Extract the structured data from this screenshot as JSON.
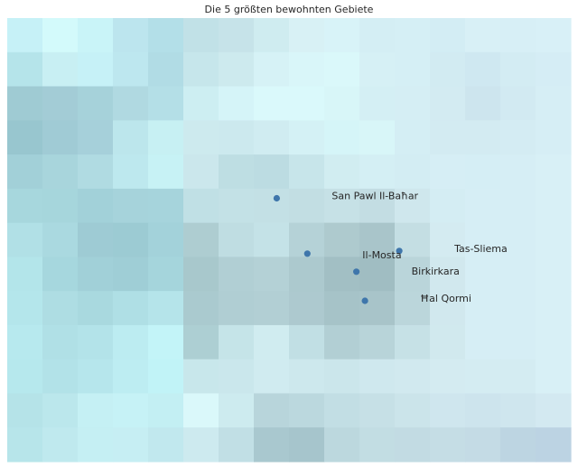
{
  "map": {
    "title": "Die 5 größten bewohnten Gebiete",
    "marker_color": "#3f76ab",
    "tile_colors": [
      [
        "#c6f1f7",
        "#d3fafb",
        "#c9f4f8",
        "#bce5ee",
        "#b3dfe8",
        "#c1e1e7",
        "#c6e3e9",
        "#cfecf0",
        "#d8f1f5",
        "#d8f3f8",
        "#d4eef4",
        "#d5eff5",
        "#d3edf4",
        "#d8f0f6",
        "#d7eff6",
        "#d8f0f7"
      ],
      [
        "#b5e4ea",
        "#c8eff3",
        "#c6f1f7",
        "#bde7ef",
        "#b1dce5",
        "#c6e6eb",
        "#cdeaee",
        "#d6f2f6",
        "#d9f6f9",
        "#daf8fa",
        "#d6f0f5",
        "#d5eff5",
        "#d2ebf2",
        "#cfe8f1",
        "#d3ecf3",
        "#d5edf5"
      ],
      [
        "#9fcbd3",
        "#a3ccd6",
        "#a6d2da",
        "#b0d9e1",
        "#b4dfe7",
        "#cdeef2",
        "#d5f4f8",
        "#daf9fb",
        "#daf9fb",
        "#d8f6f8",
        "#d4eff4",
        "#d5eef4",
        "#d3ebf2",
        "#cde5ee",
        "#d2eaf2",
        "#d6eef5"
      ],
      [
        "#98c6cf",
        "#a0cbd5",
        "#a6d0da",
        "#bce6ec",
        "#c7f0f3",
        "#cdeaee",
        "#cce9ee",
        "#d0ecf1",
        "#d4f1f5",
        "#d5f5f8",
        "#d8f6f8",
        "#d4eef4",
        "#d3ebf2",
        "#d3ebf2",
        "#d4ecf3",
        "#d6eef5"
      ],
      [
        "#a2d0d8",
        "#a8d5dc",
        "#b0dbe2",
        "#bde8ee",
        "#c7f2f5",
        "#cbe7ec",
        "#bedee3",
        "#bcdce2",
        "#c7e5ea",
        "#d1edf1",
        "#d4eff4",
        "#d3edf3",
        "#d6eef5",
        "#d5eef5",
        "#d6eef5",
        "#d8f0f6"
      ],
      [
        "#a7d7dd",
        "#a6d6dc",
        "#a2d1d9",
        "#a6d3db",
        "#a6d4dc",
        "#c0e0e5",
        "#c3e1e6",
        "#c3e0e5",
        "#c2dee3",
        "#c6e1e6",
        "#c3dde3",
        "#cfe7ed",
        "#d4edf3",
        "#d6eef5",
        "#d6eef5",
        "#d8f0f6"
      ],
      [
        "#b1e0e6",
        "#aad9e0",
        "#9ecbd4",
        "#9ccbd3",
        "#a3d2da",
        "#aecdd1",
        "#bfdde2",
        "#c4e2e7",
        "#b5d2d7",
        "#aecace",
        "#a9c5ca",
        "#c4dee3",
        "#d4ebf1",
        "#d6eef5",
        "#d6eef5",
        "#d8f0f6"
      ],
      [
        "#b3e5ea",
        "#a6d7de",
        "#a1d0d8",
        "#9fced6",
        "#a5d5dc",
        "#a8c8cc",
        "#b1cfd4",
        "#b4d1d6",
        "#acc9ce",
        "#a2bfc4",
        "#a0bdc2",
        "#bad5da",
        "#d1e8ee",
        "#d6eef5",
        "#d6eef5",
        "#d8f0f6"
      ],
      [
        "#b4e6eb",
        "#aedde3",
        "#a9d9df",
        "#afdfe5",
        "#b5e4ea",
        "#aacacf",
        "#b0ced3",
        "#b2cfd4",
        "#adc9cf",
        "#a6c3c8",
        "#a8c4c9",
        "#bbd6db",
        "#d1e8ee",
        "#d6eef5",
        "#d6eef5",
        "#d8f0f6"
      ],
      [
        "#b7e9ee",
        "#b0e0e6",
        "#b3e3e9",
        "#bcecf1",
        "#c3f4f8",
        "#adcfd3",
        "#c5e4e8",
        "#d0ecf0",
        "#c1dfe4",
        "#b2cfd4",
        "#b8d4d9",
        "#c6e1e6",
        "#d1e9ee",
        "#d6eef5",
        "#d6eef5",
        "#d8f0f6"
      ],
      [
        "#b6e8ed",
        "#b2e2e8",
        "#b6e6ec",
        "#bdedf2",
        "#c1f3f7",
        "#c8e7eb",
        "#cae7ec",
        "#d0ebf0",
        "#cde8ed",
        "#cbe6eb",
        "#cfe8ee",
        "#d1e9ef",
        "#d4ebf1",
        "#d4ecf2",
        "#d4ecf2",
        "#d8f0f6"
      ],
      [
        "#b5e3e8",
        "#bbe7ec",
        "#c5f0f4",
        "#c6f2f6",
        "#c3eff3",
        "#daf8fa",
        "#cdebef",
        "#b8d5db",
        "#bbd8de",
        "#c2dee4",
        "#c6e0e6",
        "#cbe4ea",
        "#cfe6ee",
        "#cde4ed",
        "#cfe6ee",
        "#d3e9f1"
      ],
      [
        "#b7e5ea",
        "#bfe9ee",
        "#c5eff3",
        "#c6eef3",
        "#c1e8ee",
        "#cdeaef",
        "#c1dfe5",
        "#a9c8cf",
        "#a6c5cc",
        "#bcd8de",
        "#c2dde3",
        "#c2dbe3",
        "#c5dde5",
        "#c4dbe5",
        "#bdd5e2",
        "#bcd3e3"
      ]
    ],
    "cities": [
      {
        "name": "San Pawl Il-Baħar",
        "lon": 14.4,
        "lat": 35.95
      },
      {
        "name": "Il-Mosta",
        "lon": 14.425,
        "lat": 35.91
      },
      {
        "name": "Tas-Sliema",
        "lon": 14.5,
        "lat": 35.912
      },
      {
        "name": "Birkirkara",
        "lon": 14.465,
        "lat": 35.897
      },
      {
        "name": "Ħal Qormi",
        "lon": 14.472,
        "lat": 35.876
      }
    ]
  }
}
